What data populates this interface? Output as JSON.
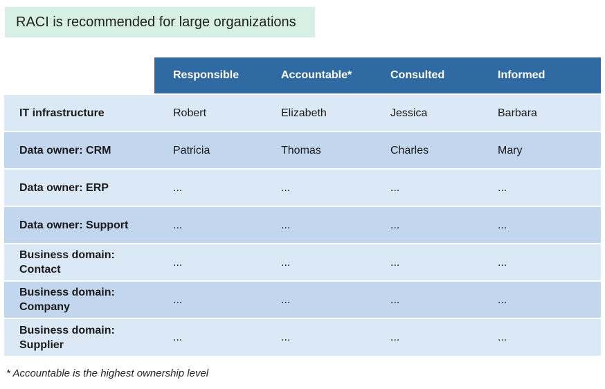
{
  "banner": {
    "text": "RACI is recommended for large organizations"
  },
  "table": {
    "headers": [
      "",
      "Responsible",
      "Accountable*",
      "Consulted",
      "Informed"
    ],
    "rows": [
      {
        "label": "IT infrastructure",
        "cells": [
          "Robert",
          "Elizabeth",
          "Jessica",
          "Barbara"
        ]
      },
      {
        "label": "Data owner:  CRM",
        "cells": [
          "Patricia",
          "Thomas",
          "Charles",
          "Mary"
        ]
      },
      {
        "label": "Data owner:  ERP",
        "cells": [
          "...",
          "...",
          "...",
          "..."
        ]
      },
      {
        "label": "Data owner:  Support",
        "cells": [
          "...",
          "...",
          "...",
          "..."
        ]
      },
      {
        "label": "Business domain: Contact",
        "cells": [
          "...",
          "...",
          "...",
          "..."
        ]
      },
      {
        "label": "Business domain: Company",
        "cells": [
          "...",
          "...",
          "...",
          "..."
        ]
      },
      {
        "label": "Business domain: Supplier",
        "cells": [
          "...",
          "...",
          "...",
          "..."
        ]
      }
    ]
  },
  "footnote": "* Accountable is the highest ownership level"
}
